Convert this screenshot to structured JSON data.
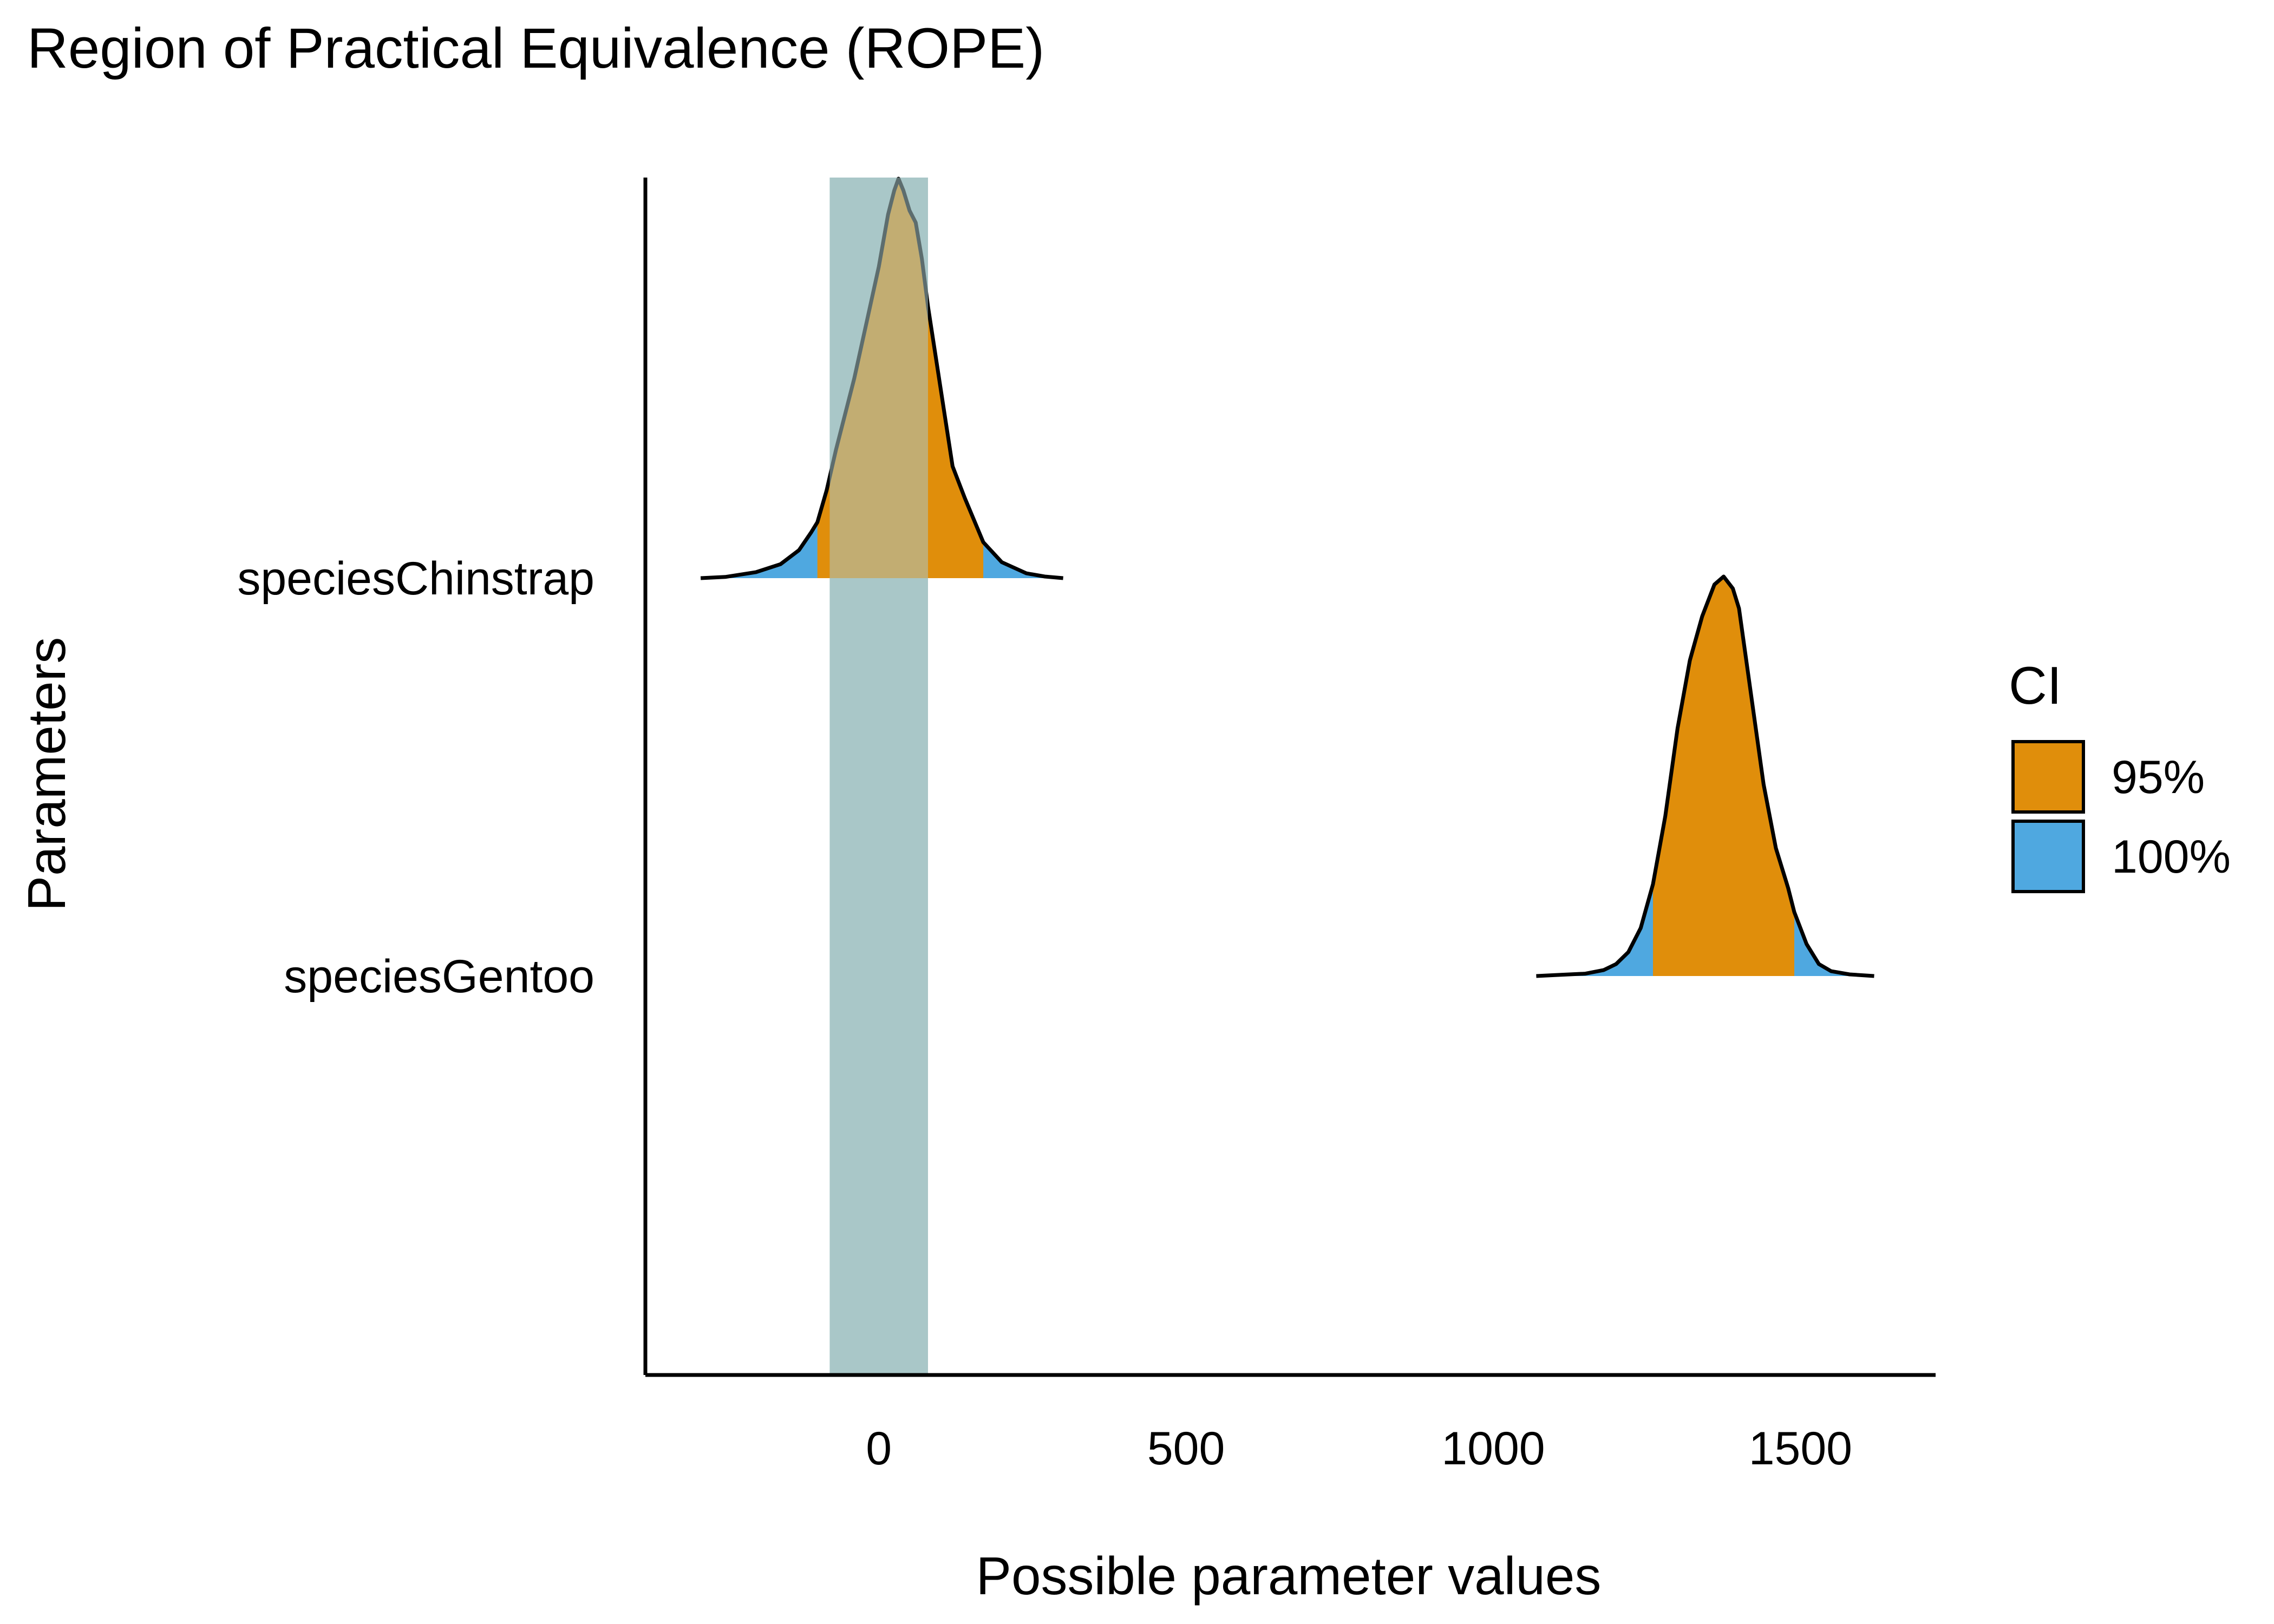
{
  "chart_data": {
    "type": "area",
    "title": "Region of Practical Equivalence (ROPE)",
    "xlabel": "Possible parameter values",
    "ylabel": "Parameters",
    "xlim": [
      -380,
      1720
    ],
    "x_ticks": [
      0,
      500,
      1000,
      1500
    ],
    "x_tick_labels": [
      "0",
      "500",
      "1000",
      "1500"
    ],
    "grid": false,
    "rope": {
      "low": -80,
      "high": 80,
      "color": "#A9C7C8"
    },
    "legend": {
      "title": "CI",
      "placement": "right",
      "entries": [
        {
          "label": "95%",
          "color": "#E08E0B"
        },
        {
          "label": "100%",
          "color": "#4FA8E0"
        }
      ]
    },
    "series": [
      {
        "name": "speciesChinstrap",
        "color_ci95": "#E08E0B",
        "color_ci100": "#4FA8E0",
        "ci95": [
          -100,
          170
        ],
        "ci100": [
          -290,
          300
        ],
        "density_x": [
          -290,
          -250,
          -200,
          -160,
          -130,
          -110,
          -100,
          -85,
          -70,
          -40,
          -20,
          0,
          15,
          25,
          32,
          40,
          50,
          60,
          70,
          80,
          100,
          120,
          140,
          170,
          200,
          240,
          270,
          300
        ],
        "density_y": [
          0.0,
          0.003,
          0.015,
          0.035,
          0.07,
          0.115,
          0.14,
          0.22,
          0.32,
          0.5,
          0.64,
          0.78,
          0.91,
          0.97,
          1.0,
          0.97,
          0.92,
          0.89,
          0.8,
          0.68,
          0.48,
          0.28,
          0.2,
          0.09,
          0.04,
          0.012,
          0.004,
          0.0
        ]
      },
      {
        "name": "speciesGentoo",
        "color_ci95": "#E08E0B",
        "color_ci100": "#4FA8E0",
        "ci95": [
          1260,
          1490
        ],
        "ci100": [
          1070,
          1620
        ],
        "density_x": [
          1070,
          1110,
          1150,
          1180,
          1200,
          1220,
          1240,
          1260,
          1280,
          1300,
          1320,
          1340,
          1360,
          1375,
          1390,
          1400,
          1420,
          1440,
          1460,
          1480,
          1490,
          1510,
          1530,
          1550,
          1580,
          1620
        ],
        "density_y": [
          0.0,
          0.003,
          0.006,
          0.015,
          0.03,
          0.06,
          0.12,
          0.23,
          0.4,
          0.62,
          0.79,
          0.9,
          0.98,
          1.0,
          0.97,
          0.92,
          0.7,
          0.48,
          0.32,
          0.22,
          0.16,
          0.08,
          0.03,
          0.012,
          0.004,
          0.0
        ]
      }
    ]
  }
}
